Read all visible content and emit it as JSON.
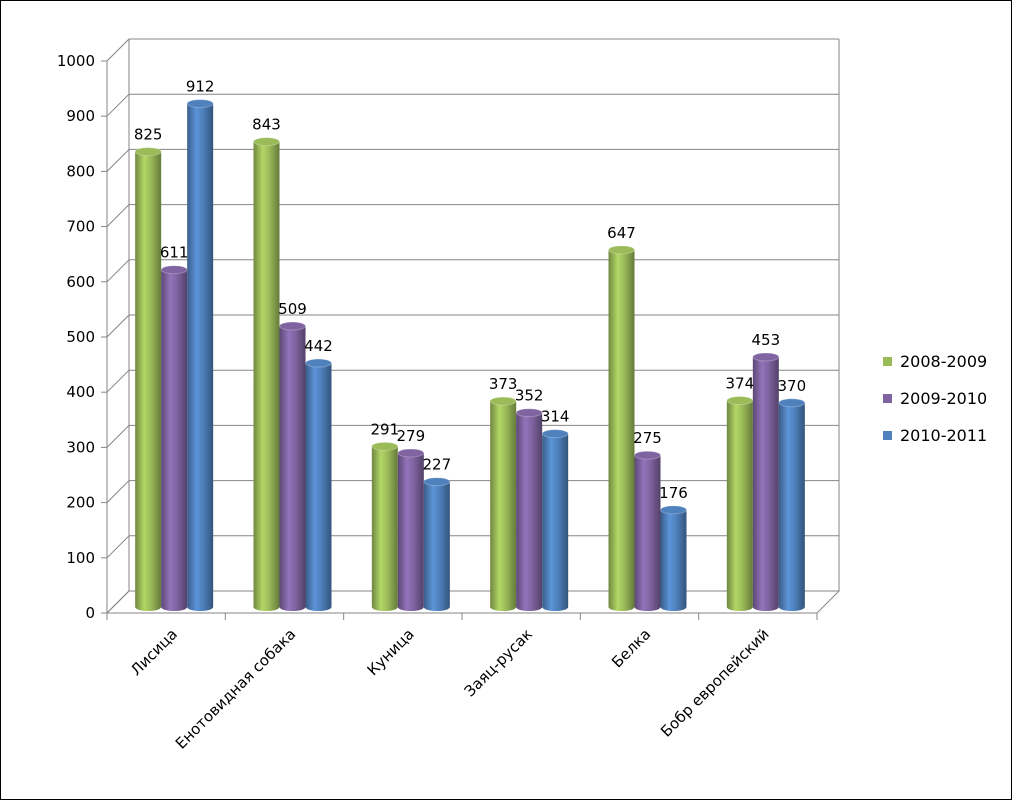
{
  "chart_data": {
    "type": "bar",
    "categories": [
      "Лисица",
      "Енотовидная собака",
      "Куница",
      "Заяц-русак",
      "Белка",
      "Бобр европейский"
    ],
    "series": [
      {
        "name": "2008-2009",
        "color": "#9bbb59",
        "values": [
          825,
          843,
          291,
          373,
          647,
          374
        ]
      },
      {
        "name": "2009-2010",
        "color": "#8064a2",
        "values": [
          611,
          509,
          279,
          352,
          275,
          453
        ]
      },
      {
        "name": "2010-2011",
        "color": "#4f81bd",
        "values": [
          912,
          442,
          227,
          314,
          176,
          370
        ]
      }
    ],
    "title": "",
    "xlabel": "",
    "ylabel": "",
    "ylim": [
      0,
      1000
    ],
    "yticks": [
      0,
      100,
      200,
      300,
      400,
      500,
      600,
      700,
      800,
      900,
      1000
    ],
    "grid": true,
    "style": "3d-cylinder",
    "legend_position": "right"
  }
}
